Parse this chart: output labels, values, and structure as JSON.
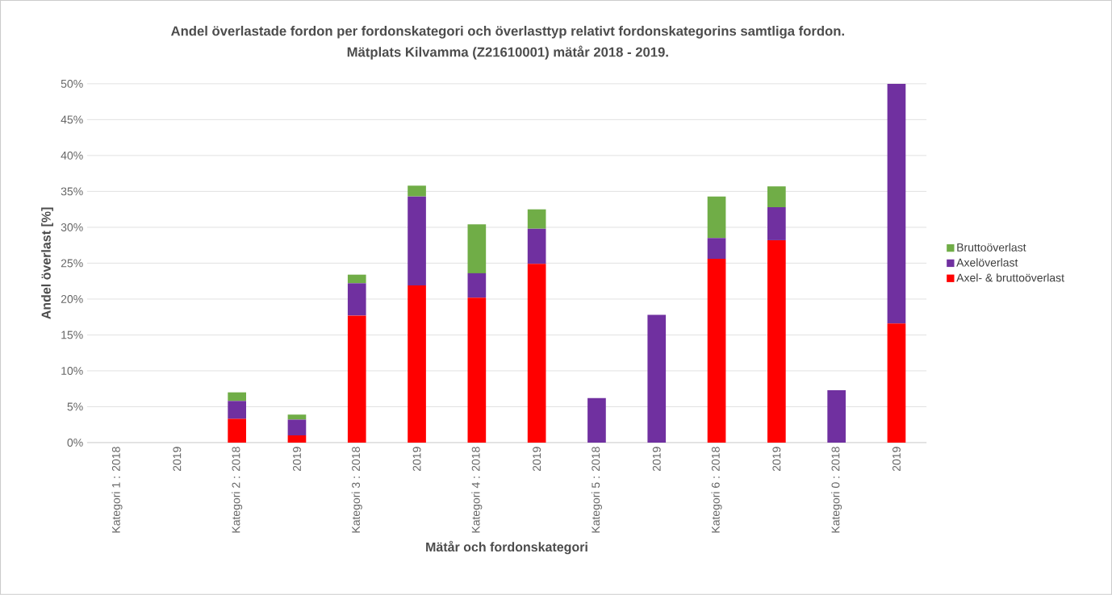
{
  "chart_data": {
    "type": "bar",
    "stacked": true,
    "title": "Andel överlastade fordon per fordonskategori och överlasttyp relativt fordonskategorins samtliga fordon.",
    "subtitle": "Mätplats Kilvamma (Z21610001) mätår 2018 - 2019.",
    "xlabel": "Mätår och fordonskategori",
    "ylabel": "Andel överlast [%]",
    "categories": [
      "Kategori 1 : 2018",
      "2019",
      "Kategori 2 : 2018",
      "2019",
      "Kategori 3 : 2018",
      "2019",
      "Kategori 4 : 2018",
      "2019",
      "Kategori 5 : 2018",
      "2019",
      "Kategori 6 : 2018",
      "2019",
      "Kategori 0 : 2018",
      "2019"
    ],
    "series": [
      {
        "name": "Axel- & bruttoöverlast",
        "color": "#ff0000",
        "values": [
          0,
          0,
          3.3,
          1.0,
          17.7,
          21.9,
          20.2,
          24.9,
          0,
          0,
          25.6,
          28.2,
          0,
          16.6
        ]
      },
      {
        "name": "Axelöverlast",
        "color": "#7030a0",
        "values": [
          0,
          0,
          2.5,
          2.2,
          4.5,
          12.4,
          3.4,
          4.9,
          6.2,
          17.8,
          2.9,
          4.6,
          7.3,
          33.4
        ]
      },
      {
        "name": "Bruttoöverlast",
        "color": "#70ad47",
        "values": [
          0,
          0,
          1.2,
          0.7,
          1.2,
          1.5,
          6.8,
          2.7,
          0,
          0,
          5.8,
          2.9,
          0,
          0
        ]
      }
    ],
    "ylim": [
      0,
      50
    ],
    "yticks": [
      {
        "value": 0,
        "label": "0%"
      },
      {
        "value": 5,
        "label": "5%"
      },
      {
        "value": 10,
        "label": "10%"
      },
      {
        "value": 15,
        "label": "15%"
      },
      {
        "value": 20,
        "label": "20%"
      },
      {
        "value": 25,
        "label": "25%"
      },
      {
        "value": 30,
        "label": "30%"
      },
      {
        "value": 35,
        "label": "35%"
      },
      {
        "value": 40,
        "label": "40%"
      },
      {
        "value": 45,
        "label": "45%"
      },
      {
        "value": 50,
        "label": "50%"
      }
    ],
    "grid": "y",
    "legend": "right"
  }
}
